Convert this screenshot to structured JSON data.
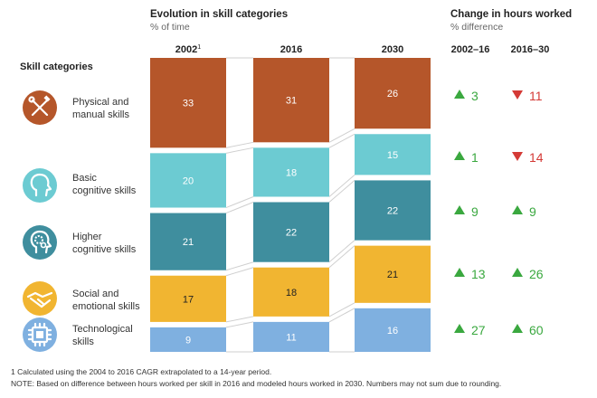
{
  "header": {
    "evolution_title": "Evolution in skill categories",
    "evolution_sub": "% of time",
    "change_title": "Change in hours worked",
    "change_sub": "% difference",
    "skill_categories_label": "Skill categories"
  },
  "periods": [
    "2002–16",
    "2016–30"
  ],
  "chart_data": {
    "type": "bar",
    "stacked": true,
    "categories": [
      "2002",
      "2016",
      "2030"
    ],
    "category_superscripts": [
      "1",
      "",
      ""
    ],
    "series": [
      {
        "name": "Physical and manual skills",
        "values": [
          33,
          31,
          26
        ],
        "color": "#b5562a"
      },
      {
        "name": "Basic cognitive skills",
        "values": [
          20,
          18,
          15
        ],
        "color": "#6ccbd2"
      },
      {
        "name": "Higher cognitive skills",
        "values": [
          21,
          22,
          22
        ],
        "color": "#3f8e9e"
      },
      {
        "name": "Social and emotional skills",
        "values": [
          17,
          18,
          21
        ],
        "color": "#f1b531"
      },
      {
        "name": "Technological skills",
        "values": [
          9,
          11,
          16
        ],
        "color": "#7fb0e0"
      }
    ],
    "changes": [
      {
        "p1": 3,
        "d1": "up",
        "p2": 11,
        "d2": "down"
      },
      {
        "p1": 1,
        "d1": "up",
        "p2": 14,
        "d2": "down"
      },
      {
        "p1": 9,
        "d1": "up",
        "p2": 9,
        "d2": "up"
      },
      {
        "p1": 13,
        "d1": "up",
        "p2": 26,
        "d2": "up"
      },
      {
        "p1": 27,
        "d1": "up",
        "p2": 60,
        "d2": "up"
      }
    ]
  },
  "skills": [
    {
      "line1": "Physical and",
      "line2": "manual skills",
      "icon": "tools-icon"
    },
    {
      "line1": "Basic",
      "line2": "cognitive skills",
      "icon": "head-icon"
    },
    {
      "line1": "Higher",
      "line2": "cognitive skills",
      "icon": "head-gears-icon"
    },
    {
      "line1": "Social and",
      "line2": "emotional skills",
      "icon": "handshake-icon"
    },
    {
      "line1": "Technological",
      "line2": "skills",
      "icon": "chip-icon"
    }
  ],
  "colors": {
    "up": "#3aa83f",
    "down": "#d43a36"
  },
  "footnotes": {
    "note1": "1  Calculated using the 2004 to 2016 CAGR extrapolated to a 14-year period.",
    "note2": "NOTE: Based on difference between hours worked per skill in 2016 and modeled hours worked in 2030. Numbers may not sum due to rounding."
  }
}
